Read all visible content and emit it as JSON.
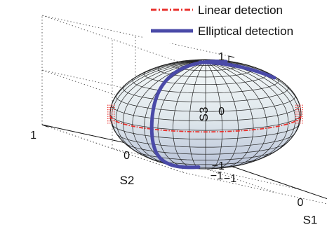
{
  "chart_data": {
    "type": "3d-surface",
    "title": "",
    "xlabel": "S1",
    "ylabel": "S2",
    "zlabel": "S3",
    "xlim": [
      -1,
      1
    ],
    "ylim": [
      -1,
      1
    ],
    "zlim": [
      -1,
      1
    ],
    "x_ticks": [
      "−1",
      "0",
      "1"
    ],
    "y_ticks": [
      "−1",
      "0",
      "1"
    ],
    "z_ticks": [
      "−1",
      "0",
      "1"
    ],
    "grid": true,
    "legend_position": "top-right",
    "surface": {
      "name": "Poincaré sphere",
      "radius": 1,
      "color_top": "#f4f8f8",
      "color_bottom": "#b8c2d8"
    },
    "series": [
      {
        "name": "Linear detection",
        "path": "equator",
        "z": 0,
        "style": "dash-dot",
        "color": "#e8302c"
      },
      {
        "name": "Elliptical detection",
        "path": "great circle through S3 poles",
        "style": "solid",
        "color": "#4a4aa8"
      }
    ]
  }
}
